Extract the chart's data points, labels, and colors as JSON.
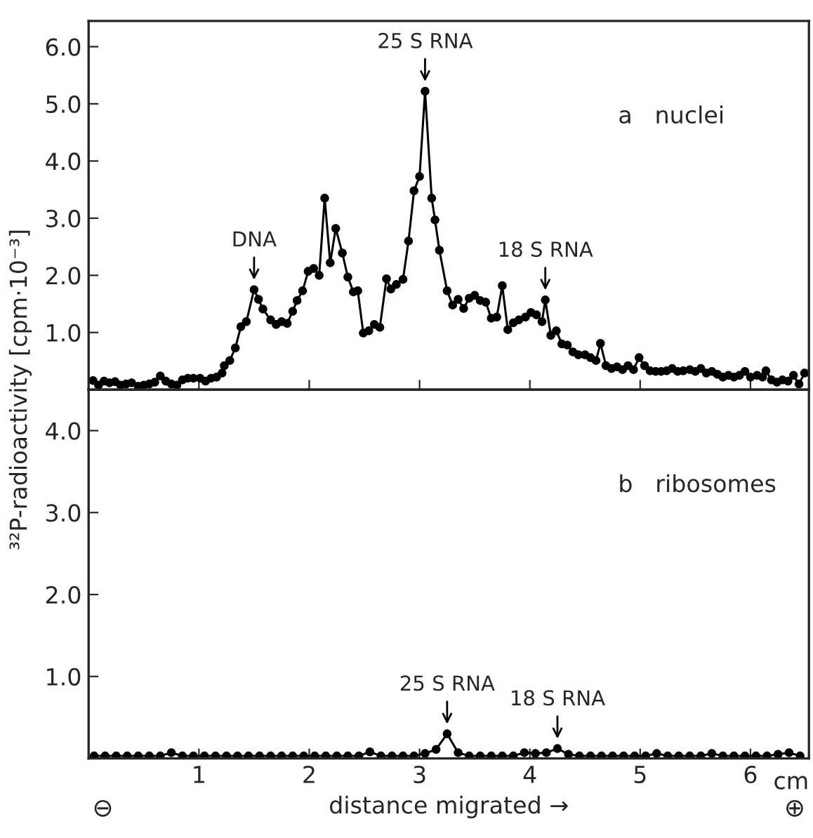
{
  "chart_data": [
    {
      "type": "line",
      "ylabel": "³²P-radioactivity [cpm·10⁻³]",
      "xlim": [
        0,
        6.53
      ],
      "ylim": [
        0,
        6.45
      ],
      "xticks": [
        {
          "value": 1,
          "label": null
        },
        {
          "value": 2,
          "label": null
        },
        {
          "value": 3,
          "label": null
        },
        {
          "value": 4,
          "label": null
        },
        {
          "value": 5,
          "label": null
        },
        {
          "value": 6,
          "label": null
        }
      ],
      "yticks": [
        {
          "value": 1,
          "label": "1.0"
        },
        {
          "value": 2,
          "label": "2.0"
        },
        {
          "value": 3,
          "label": "3.0"
        },
        {
          "value": 4,
          "label": "4.0"
        },
        {
          "value": 5,
          "label": "5.0"
        },
        {
          "value": 6,
          "label": "6.0"
        }
      ],
      "tick_labels": "y",
      "marker": "circle",
      "line_style": "solid",
      "grid": false,
      "legend": false,
      "x": [
        0.04,
        0.09,
        0.14,
        0.19,
        0.24,
        0.29,
        0.34,
        0.39,
        0.45,
        0.5,
        0.55,
        0.6,
        0.65,
        0.7,
        0.75,
        0.8,
        0.85,
        0.9,
        0.95,
        1.01,
        1.06,
        1.11,
        1.16,
        1.21,
        1.23,
        1.28,
        1.33,
        1.38,
        1.43,
        1.5,
        1.54,
        1.58,
        1.65,
        1.7,
        1.75,
        1.8,
        1.85,
        1.89,
        1.94,
        1.99,
        2.04,
        2.09,
        2.14,
        2.19,
        2.24,
        2.3,
        2.35,
        2.4,
        2.44,
        2.49,
        2.54,
        2.59,
        2.64,
        2.7,
        2.74,
        2.79,
        2.85,
        2.9,
        2.95,
        3.0,
        3.05,
        3.11,
        3.14,
        3.18,
        3.25,
        3.3,
        3.35,
        3.4,
        3.45,
        3.5,
        3.55,
        3.6,
        3.65,
        3.7,
        3.75,
        3.8,
        3.85,
        3.9,
        3.96,
        4.01,
        4.06,
        4.11,
        4.14,
        4.19,
        4.24,
        4.29,
        4.34,
        4.39,
        4.44,
        4.5,
        4.55,
        4.6,
        4.64,
        4.69,
        4.74,
        4.79,
        4.84,
        4.89,
        4.94,
        4.99,
        5.04,
        5.09,
        5.14,
        5.19,
        5.24,
        5.29,
        5.34,
        5.39,
        5.45,
        5.5,
        5.55,
        5.6,
        5.65,
        5.7,
        5.75,
        5.8,
        5.85,
        5.9,
        5.95,
        6.0,
        6.06,
        6.11,
        6.14,
        6.19,
        6.24,
        6.29,
        6.34,
        6.39,
        6.44,
        6.49
      ],
      "series": [
        {
          "color": "#000000",
          "values": [
            0.16,
            0.08,
            0.15,
            0.12,
            0.14,
            0.08,
            0.1,
            0.12,
            0.06,
            0.08,
            0.1,
            0.13,
            0.24,
            0.15,
            0.1,
            0.08,
            0.17,
            0.2,
            0.2,
            0.2,
            0.15,
            0.2,
            0.22,
            0.29,
            0.42,
            0.51,
            0.73,
            1.1,
            1.19,
            1.75,
            1.58,
            1.41,
            1.22,
            1.14,
            1.19,
            1.16,
            1.37,
            1.56,
            1.73,
            2.07,
            2.12,
            2.0,
            3.35,
            2.22,
            2.82,
            2.39,
            1.97,
            1.71,
            1.73,
            0.99,
            1.03,
            1.14,
            1.09,
            1.94,
            1.76,
            1.84,
            1.93,
            2.6,
            3.48,
            3.73,
            5.22,
            3.35,
            2.97,
            2.44,
            1.73,
            1.48,
            1.58,
            1.42,
            1.6,
            1.65,
            1.56,
            1.53,
            1.25,
            1.27,
            1.82,
            1.05,
            1.17,
            1.22,
            1.27,
            1.35,
            1.31,
            1.19,
            1.57,
            0.95,
            1.03,
            0.8,
            0.78,
            0.66,
            0.61,
            0.61,
            0.56,
            0.51,
            0.81,
            0.42,
            0.37,
            0.4,
            0.35,
            0.42,
            0.35,
            0.56,
            0.42,
            0.33,
            0.32,
            0.32,
            0.33,
            0.37,
            0.32,
            0.33,
            0.35,
            0.32,
            0.37,
            0.29,
            0.32,
            0.27,
            0.22,
            0.25,
            0.22,
            0.25,
            0.32,
            0.22,
            0.25,
            0.22,
            0.33,
            0.17,
            0.13,
            0.17,
            0.15,
            0.25,
            0.1,
            0.29
          ]
        }
      ],
      "annotations": [
        {
          "text": "DNA",
          "x": 1.5,
          "y": 1.75
        },
        {
          "text": "25 S RNA",
          "x": 3.05,
          "y": 5.22
        },
        {
          "text": "18 S RNA",
          "x": 4.14,
          "y": 1.57
        },
        "a   nuclei"
      ]
    },
    {
      "type": "line",
      "xlabel": "distance migrated →",
      "xlim": [
        0,
        6.53
      ],
      "ylim": [
        0,
        4.5
      ],
      "xticks": [
        1,
        2,
        3,
        4,
        5,
        6
      ],
      "yticks": [
        {
          "value": 1,
          "label": "1.0"
        },
        {
          "value": 2,
          "label": "2.0"
        },
        {
          "value": 3,
          "label": "3.0"
        },
        {
          "value": 4,
          "label": "4.0"
        }
      ],
      "marker": "circle",
      "line_style": "solid",
      "grid": false,
      "legend": false,
      "x": [
        0.05,
        0.15,
        0.25,
        0.35,
        0.45,
        0.55,
        0.65,
        0.75,
        0.85,
        0.95,
        1.05,
        1.15,
        1.25,
        1.35,
        1.45,
        1.55,
        1.65,
        1.75,
        1.85,
        1.95,
        2.05,
        2.15,
        2.25,
        2.35,
        2.45,
        2.55,
        2.65,
        2.75,
        2.85,
        2.95,
        3.05,
        3.15,
        3.25,
        3.35,
        3.45,
        3.55,
        3.65,
        3.75,
        3.85,
        3.95,
        4.05,
        4.15,
        4.25,
        4.35,
        4.45,
        4.55,
        4.65,
        4.75,
        4.85,
        4.95,
        5.05,
        5.15,
        5.25,
        5.35,
        5.45,
        5.55,
        5.65,
        5.75,
        5.85,
        5.95,
        6.05,
        6.15,
        6.25,
        6.35,
        6.45
      ],
      "series": [
        {
          "color": "#000000",
          "values": [
            0.03,
            0.03,
            0.03,
            0.03,
            0.03,
            0.03,
            0.03,
            0.07,
            0.03,
            0.03,
            0.03,
            0.03,
            0.03,
            0.03,
            0.03,
            0.03,
            0.03,
            0.03,
            0.03,
            0.03,
            0.03,
            0.03,
            0.03,
            0.03,
            0.03,
            0.08,
            0.03,
            0.03,
            0.03,
            0.03,
            0.06,
            0.11,
            0.3,
            0.07,
            0.03,
            0.03,
            0.03,
            0.03,
            0.03,
            0.07,
            0.06,
            0.07,
            0.12,
            0.05,
            0.03,
            0.03,
            0.03,
            0.03,
            0.03,
            0.03,
            0.03,
            0.06,
            0.03,
            0.03,
            0.03,
            0.03,
            0.06,
            0.03,
            0.03,
            0.03,
            0.03,
            0.03,
            0.05,
            0.07,
            0.03
          ]
        }
      ],
      "annotations": [
        {
          "text": "25 S RNA",
          "x": 3.25,
          "y": 0.3
        },
        {
          "text": "18 S RNA",
          "x": 4.25,
          "y": 0.12
        },
        "b   ribosomes",
        "cm",
        "⊖",
        "⊕"
      ]
    }
  ]
}
